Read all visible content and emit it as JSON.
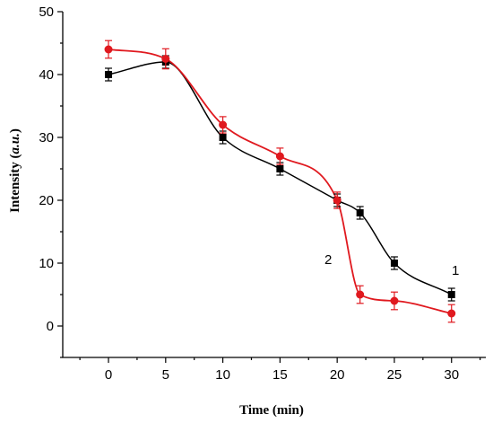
{
  "chart_data": {
    "type": "scatter",
    "title": "",
    "xlabel": "Time (min)",
    "ylabel_main": "Intensity (",
    "ylabel_unit": "a.u.",
    "ylabel_end": ")",
    "xlim": [
      -4,
      33
    ],
    "ylim": [
      -5,
      50
    ],
    "xticks": [
      "0",
      "5",
      "10",
      "15",
      "20",
      "25",
      "30"
    ],
    "yticks": [
      "0",
      "10",
      "20",
      "30",
      "40",
      "50"
    ],
    "series": [
      {
        "label": "1",
        "color": "#000000",
        "marker": "square",
        "x": [
          0,
          5,
          10,
          15,
          20,
          22,
          25,
          30
        ],
        "y": [
          40,
          42,
          30,
          25,
          20,
          18,
          10,
          5
        ],
        "err": [
          1.0,
          1.0,
          1.0,
          1.0,
          1.0,
          1.0,
          1.0,
          1.0
        ]
      },
      {
        "label": "2",
        "color": "#e0191f",
        "marker": "circle",
        "x": [
          0,
          5,
          10,
          15,
          20,
          22,
          25,
          30
        ],
        "y": [
          44,
          42.5,
          32,
          27,
          20,
          5,
          4,
          2
        ],
        "err": [
          1.4,
          1.6,
          1.3,
          1.3,
          1.3,
          1.4,
          1.4,
          1.4
        ]
      }
    ]
  }
}
